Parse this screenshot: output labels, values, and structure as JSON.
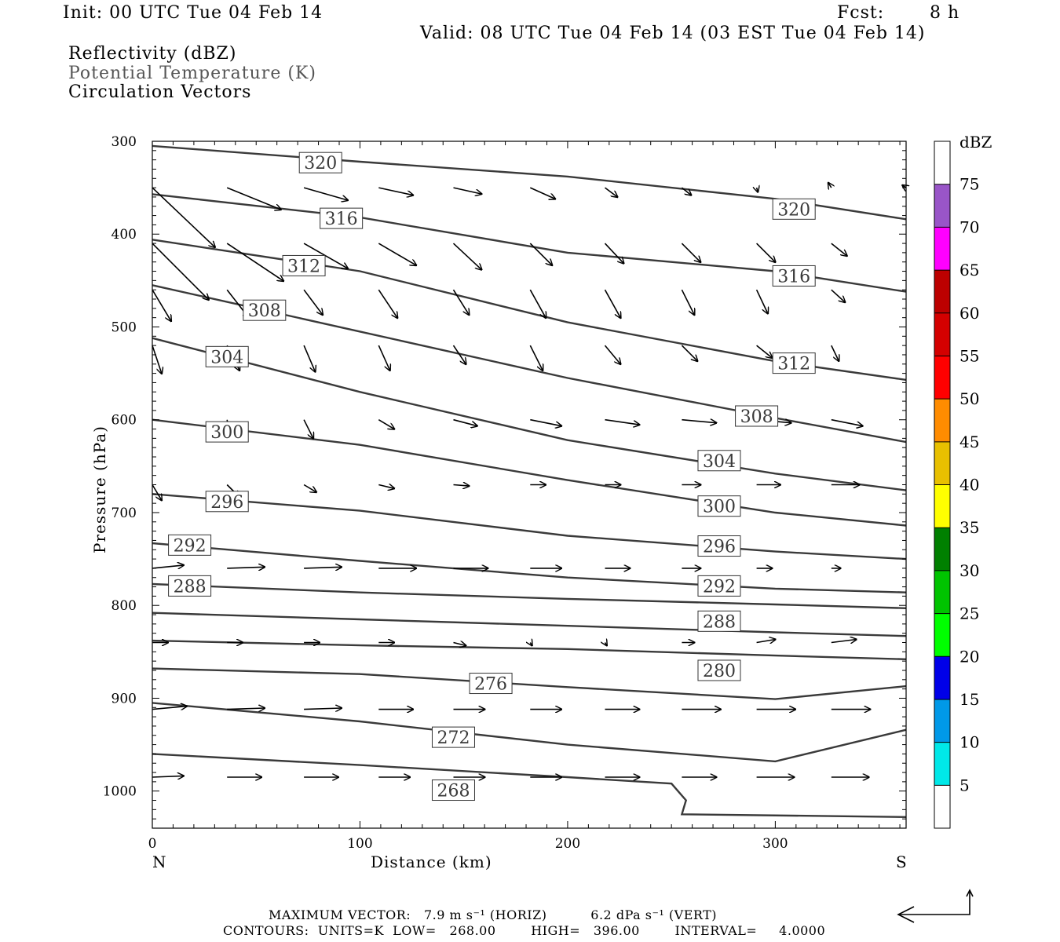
{
  "header": {
    "init": "Init: 00 UTC Tue 04 Feb 14",
    "fcst_label": "Fcst:",
    "fcst_value": "8 h",
    "valid": "Valid: 08 UTC Tue 04 Feb 14 (03 EST Tue 04 Feb 14)",
    "field_1": "Reflectivity (dBZ)",
    "field_2": "Potential Temperature (K)",
    "field_3": "Circulation Vectors"
  },
  "chart_data": {
    "type": "cross-section",
    "xlabel": "Distance (km)",
    "ylabel": "Pressure (hPa)",
    "xlim": [
      0,
      363
    ],
    "ylim": [
      1040,
      300
    ],
    "x_ticks": [
      0,
      100,
      200,
      300
    ],
    "y_ticks": [
      300,
      400,
      500,
      600,
      700,
      800,
      900,
      1000
    ],
    "left_end_label": "N",
    "right_end_label": "S",
    "contours_units": "K",
    "contours": [
      {
        "level": 320,
        "points": [
          [
            0,
            305
          ],
          [
            100,
            322
          ],
          [
            200,
            338
          ],
          [
            300,
            362
          ],
          [
            363,
            384
          ]
        ]
      },
      {
        "level": 316,
        "points": [
          [
            0,
            357
          ],
          [
            100,
            382
          ],
          [
            200,
            420
          ],
          [
            300,
            440
          ],
          [
            363,
            462
          ]
        ]
      },
      {
        "level": 312,
        "points": [
          [
            0,
            406
          ],
          [
            100,
            440
          ],
          [
            200,
            495
          ],
          [
            300,
            537
          ],
          [
            363,
            557
          ]
        ]
      },
      {
        "level": 308,
        "points": [
          [
            0,
            455
          ],
          [
            100,
            505
          ],
          [
            200,
            555
          ],
          [
            300,
            598
          ],
          [
            363,
            624
          ]
        ]
      },
      {
        "level": 304,
        "points": [
          [
            0,
            512
          ],
          [
            100,
            570
          ],
          [
            200,
            622
          ],
          [
            300,
            658
          ],
          [
            363,
            676
          ]
        ]
      },
      {
        "level": 300,
        "points": [
          [
            0,
            600
          ],
          [
            100,
            627
          ],
          [
            200,
            665
          ],
          [
            300,
            700
          ],
          [
            363,
            714
          ]
        ]
      },
      {
        "level": 296,
        "points": [
          [
            0,
            680
          ],
          [
            100,
            698
          ],
          [
            200,
            725
          ],
          [
            300,
            742
          ],
          [
            363,
            750
          ]
        ]
      },
      {
        "level": 292,
        "points": [
          [
            0,
            733
          ],
          [
            100,
            752
          ],
          [
            200,
            770
          ],
          [
            300,
            782
          ],
          [
            363,
            786
          ]
        ]
      },
      {
        "level": 288,
        "points": [
          [
            0,
            777
          ],
          [
            100,
            786
          ],
          [
            200,
            793
          ],
          [
            300,
            799
          ],
          [
            363,
            803
          ]
        ]
      },
      {
        "level": 284,
        "points": [
          [
            0,
            808
          ],
          [
            100,
            815
          ],
          [
            200,
            822
          ],
          [
            300,
            829
          ],
          [
            363,
            833
          ]
        ]
      },
      {
        "level": 280,
        "points": [
          [
            0,
            838
          ],
          [
            100,
            843
          ],
          [
            200,
            847
          ],
          [
            300,
            854
          ],
          [
            363,
            858
          ]
        ]
      },
      {
        "level": 276,
        "points": [
          [
            0,
            868
          ],
          [
            100,
            874
          ],
          [
            200,
            888
          ],
          [
            300,
            901
          ],
          [
            363,
            887
          ]
        ]
      },
      {
        "level": 272,
        "points": [
          [
            0,
            905
          ],
          [
            100,
            925
          ],
          [
            200,
            950
          ],
          [
            300,
            968
          ],
          [
            363,
            934
          ]
        ]
      },
      {
        "level": 268,
        "points": [
          [
            0,
            960
          ],
          [
            100,
            972
          ],
          [
            200,
            985
          ],
          [
            250,
            992
          ],
          [
            257,
            1010
          ],
          [
            255,
            1025
          ],
          [
            363,
            1028
          ]
        ]
      }
    ],
    "contour_labels": [
      {
        "text": "320",
        "x": 81,
        "p": 323
      },
      {
        "text": "320",
        "x": 309,
        "p": 373
      },
      {
        "text": "316",
        "x": 91,
        "p": 383
      },
      {
        "text": "316",
        "x": 309,
        "p": 445
      },
      {
        "text": "312",
        "x": 73,
        "p": 434
      },
      {
        "text": "312",
        "x": 309,
        "p": 539
      },
      {
        "text": "308",
        "x": 54,
        "p": 482
      },
      {
        "text": "308",
        "x": 291,
        "p": 596
      },
      {
        "text": "304",
        "x": 36,
        "p": 532
      },
      {
        "text": "304",
        "x": 273,
        "p": 644
      },
      {
        "text": "300",
        "x": 36,
        "p": 613
      },
      {
        "text": "300",
        "x": 273,
        "p": 693
      },
      {
        "text": "296",
        "x": 36,
        "p": 688
      },
      {
        "text": "296",
        "x": 273,
        "p": 736
      },
      {
        "text": "292",
        "x": 18,
        "p": 735
      },
      {
        "text": "292",
        "x": 273,
        "p": 779
      },
      {
        "text": "288",
        "x": 18,
        "p": 779
      },
      {
        "text": "288",
        "x": 273,
        "p": 817
      },
      {
        "text": "280",
        "x": 273,
        "p": 870
      },
      {
        "text": "276",
        "x": 163,
        "p": 884
      },
      {
        "text": "272",
        "x": 145,
        "p": 942
      },
      {
        "text": "268",
        "x": 145,
        "p": 999
      }
    ],
    "vector_rows": [
      {
        "p": 350,
        "vectors": [
          [
            0,
            1.0,
            -0.95
          ],
          [
            36,
            0.86,
            -0.35
          ],
          [
            73,
            0.7,
            -0.2
          ],
          [
            109,
            0.55,
            -0.12
          ],
          [
            145,
            0.45,
            -0.1
          ],
          [
            182,
            0.4,
            -0.18
          ],
          [
            218,
            0.2,
            -0.15
          ],
          [
            255,
            0.15,
            -0.12
          ],
          [
            291,
            0.02,
            -0.07
          ],
          [
            327,
            -0.05,
            0.08
          ],
          [
            363,
            -0.06,
            0.04
          ]
        ]
      },
      {
        "p": 410,
        "vectors": [
          [
            0,
            0.9,
            -0.9
          ],
          [
            36,
            0.9,
            -0.6
          ],
          [
            73,
            0.7,
            -0.4
          ],
          [
            109,
            0.6,
            -0.35
          ],
          [
            145,
            0.45,
            -0.42
          ],
          [
            182,
            0.35,
            -0.35
          ],
          [
            218,
            0.3,
            -0.32
          ],
          [
            255,
            0.3,
            -0.3
          ],
          [
            291,
            0.3,
            -0.3
          ],
          [
            327,
            0.25,
            -0.2
          ]
        ]
      },
      {
        "p": 460,
        "vectors": [
          [
            0,
            0.3,
            -0.5
          ],
          [
            36,
            0.35,
            -0.45
          ],
          [
            73,
            0.3,
            -0.4
          ],
          [
            109,
            0.3,
            -0.45
          ],
          [
            145,
            0.25,
            -0.4
          ],
          [
            182,
            0.25,
            -0.45
          ],
          [
            218,
            0.25,
            -0.45
          ],
          [
            255,
            0.2,
            -0.4
          ],
          [
            291,
            0.18,
            -0.38
          ],
          [
            327,
            0.22,
            -0.2
          ]
        ]
      },
      {
        "p": 520,
        "vectors": [
          [
            0,
            0.15,
            -0.45
          ],
          [
            36,
            0.2,
            -0.4
          ],
          [
            73,
            0.18,
            -0.42
          ],
          [
            109,
            0.18,
            -0.4
          ],
          [
            145,
            0.2,
            -0.3
          ],
          [
            182,
            0.2,
            -0.4
          ],
          [
            218,
            0.25,
            -0.3
          ],
          [
            255,
            0.25,
            -0.25
          ],
          [
            291,
            0.25,
            -0.2
          ],
          [
            327,
            0.12,
            -0.25
          ]
        ]
      },
      {
        "p": 600,
        "vectors": [
          [
            36,
            0.05,
            -0.32
          ],
          [
            73,
            0.15,
            -0.3
          ],
          [
            109,
            0.25,
            -0.15
          ],
          [
            145,
            0.38,
            -0.1
          ],
          [
            182,
            0.5,
            -0.1
          ],
          [
            218,
            0.55,
            -0.08
          ],
          [
            255,
            0.55,
            -0.05
          ],
          [
            291,
            0.55,
            -0.05
          ],
          [
            327,
            0.5,
            -0.1
          ]
        ]
      },
      {
        "p": 670,
        "vectors": [
          [
            0,
            0.15,
            -0.25
          ],
          [
            36,
            0.2,
            -0.2
          ],
          [
            73,
            0.2,
            -0.12
          ],
          [
            109,
            0.25,
            -0.06
          ],
          [
            145,
            0.25,
            -0.02
          ],
          [
            182,
            0.25,
            0.0
          ],
          [
            218,
            0.25,
            0.0
          ],
          [
            255,
            0.3,
            0.0
          ],
          [
            291,
            0.38,
            0.0
          ],
          [
            327,
            0.45,
            0.0
          ]
        ]
      },
      {
        "p": 760,
        "vectors": [
          [
            0,
            0.5,
            0.05
          ],
          [
            36,
            0.6,
            0.02
          ],
          [
            73,
            0.6,
            0.02
          ],
          [
            109,
            0.6,
            0.0
          ],
          [
            145,
            0.55,
            0.0
          ],
          [
            182,
            0.5,
            0.0
          ],
          [
            218,
            0.4,
            0.0
          ],
          [
            255,
            0.3,
            0.0
          ],
          [
            291,
            0.25,
            0.0
          ],
          [
            327,
            0.15,
            0.0
          ]
        ]
      },
      {
        "p": 840,
        "vectors": [
          [
            0,
            0.25,
            0.0
          ],
          [
            36,
            0.25,
            0.0
          ],
          [
            73,
            0.25,
            0.0
          ],
          [
            109,
            0.25,
            0.0
          ],
          [
            145,
            0.2,
            -0.05
          ],
          [
            182,
            0.03,
            -0.05
          ],
          [
            218,
            0.03,
            -0.05
          ],
          [
            255,
            0.2,
            0.0
          ],
          [
            291,
            0.3,
            0.05
          ],
          [
            327,
            0.4,
            0.05
          ]
        ]
      },
      {
        "p": 912,
        "vectors": [
          [
            0,
            0.55,
            0.05
          ],
          [
            36,
            0.6,
            0.02
          ],
          [
            73,
            0.6,
            0.02
          ],
          [
            109,
            0.55,
            0.0
          ],
          [
            145,
            0.5,
            0.0
          ],
          [
            182,
            0.5,
            0.0
          ],
          [
            218,
            0.55,
            0.0
          ],
          [
            255,
            0.62,
            0.0
          ],
          [
            291,
            0.62,
            0.0
          ],
          [
            327,
            0.62,
            0.0
          ]
        ]
      },
      {
        "p": 985,
        "vectors": [
          [
            0,
            0.5,
            0.02
          ],
          [
            36,
            0.55,
            0.0
          ],
          [
            73,
            0.55,
            0.0
          ],
          [
            109,
            0.5,
            0.0
          ],
          [
            145,
            0.5,
            0.0
          ],
          [
            182,
            0.5,
            0.0
          ],
          [
            218,
            0.55,
            0.0
          ],
          [
            255,
            0.55,
            0.0
          ],
          [
            291,
            0.6,
            0.0
          ],
          [
            327,
            0.6,
            0.0
          ]
        ]
      }
    ],
    "colorbar": {
      "units_label": "dBZ",
      "levels": [
        {
          "label": "",
          "color": "#ffffff"
        },
        {
          "label": "5",
          "color": "#00e8e8"
        },
        {
          "label": "10",
          "color": "#0099e8"
        },
        {
          "label": "15",
          "color": "#0000e8"
        },
        {
          "label": "20",
          "color": "#00ff00"
        },
        {
          "label": "25",
          "color": "#00c400"
        },
        {
          "label": "30",
          "color": "#008000"
        },
        {
          "label": "35",
          "color": "#ffff00"
        },
        {
          "label": "40",
          "color": "#e8c000"
        },
        {
          "label": "45",
          "color": "#ff8c00"
        },
        {
          "label": "50",
          "color": "#ff0000"
        },
        {
          "label": "55",
          "color": "#d40000"
        },
        {
          "label": "60",
          "color": "#bc0000"
        },
        {
          "label": "65",
          "color": "#ff00ff"
        },
        {
          "label": "70",
          "color": "#9955c8"
        },
        {
          "label": "75",
          "color": "#ffffff"
        }
      ]
    }
  },
  "footer": {
    "line1": "MAXIMUM VECTOR:   7.9 m s⁻¹ (HORIZ)          6.2 dPa s⁻¹ (VERT)",
    "line2": "CONTOURS:  UNITS=K  LOW=   268.00        HIGH=   396.00        INTERVAL=     4.0000"
  }
}
